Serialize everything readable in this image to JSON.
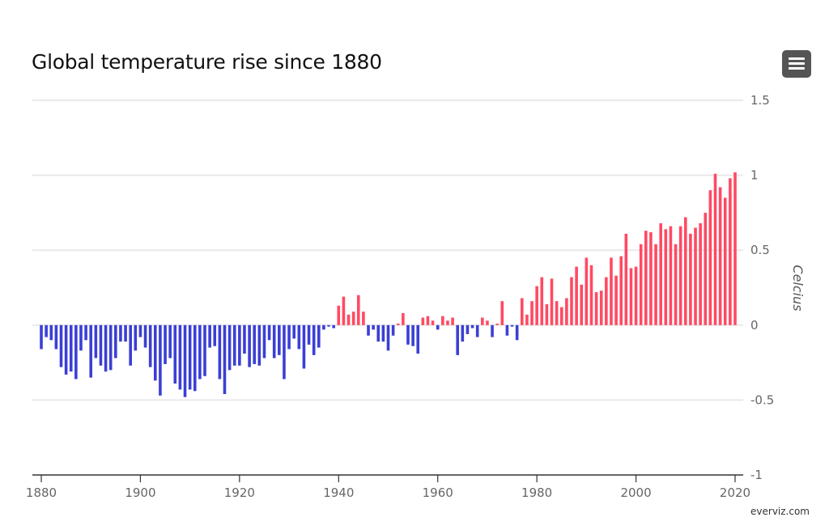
{
  "chart_data": {
    "type": "bar",
    "title": "Global temperature rise since 1880",
    "ylabel": "Celcius",
    "xlabel": "",
    "ylim": [
      -1,
      1.5
    ],
    "yticks": [
      "1.5",
      "1",
      "0.5",
      "0",
      "-0.5",
      "-1"
    ],
    "ytick_values": [
      1.5,
      1,
      0.5,
      0,
      -0.5,
      -1
    ],
    "xticks": [
      "1880",
      "1900",
      "1920",
      "1940",
      "1960",
      "1980",
      "2000",
      "2020"
    ],
    "x_start": 1880,
    "x_end": 2020,
    "grid": true,
    "legend": "none",
    "colors": {
      "negative": "#3b3fd4",
      "positive": "#ff4a63"
    },
    "values": [
      -0.16,
      -0.08,
      -0.1,
      -0.16,
      -0.28,
      -0.33,
      -0.31,
      -0.36,
      -0.17,
      -0.1,
      -0.35,
      -0.22,
      -0.27,
      -0.31,
      -0.3,
      -0.22,
      -0.11,
      -0.11,
      -0.27,
      -0.17,
      -0.08,
      -0.15,
      -0.28,
      -0.37,
      -0.47,
      -0.26,
      -0.22,
      -0.39,
      -0.43,
      -0.48,
      -0.43,
      -0.44,
      -0.36,
      -0.34,
      -0.15,
      -0.14,
      -0.36,
      -0.46,
      -0.3,
      -0.27,
      -0.27,
      -0.19,
      -0.28,
      -0.26,
      -0.27,
      -0.22,
      -0.1,
      -0.22,
      -0.2,
      -0.36,
      -0.16,
      -0.09,
      -0.16,
      -0.29,
      -0.13,
      -0.2,
      -0.15,
      -0.03,
      -0.01,
      -0.02,
      0.13,
      0.19,
      0.07,
      0.09,
      0.2,
      0.09,
      -0.07,
      -0.03,
      -0.11,
      -0.11,
      -0.17,
      -0.07,
      0.01,
      0.08,
      -0.13,
      -0.14,
      -0.19,
      0.05,
      0.06,
      0.03,
      -0.03,
      0.06,
      0.03,
      0.05,
      -0.2,
      -0.11,
      -0.06,
      -0.02,
      -0.08,
      0.05,
      0.03,
      -0.08,
      0.01,
      0.16,
      -0.07,
      -0.01,
      -0.1,
      0.18,
      0.07,
      0.16,
      0.26,
      0.32,
      0.14,
      0.31,
      0.16,
      0.12,
      0.18,
      0.32,
      0.39,
      0.27,
      0.45,
      0.4,
      0.22,
      0.23,
      0.32,
      0.45,
      0.33,
      0.46,
      0.61,
      0.38,
      0.39,
      0.54,
      0.63,
      0.62,
      0.54,
      0.68,
      0.64,
      0.66,
      0.54,
      0.66,
      0.72,
      0.61,
      0.65,
      0.68,
      0.75,
      0.9,
      1.01,
      0.92,
      0.85,
      0.98,
      1.02
    ]
  },
  "ui": {
    "menu_icon": "hamburger-menu-icon",
    "credit": "everviz.com"
  }
}
